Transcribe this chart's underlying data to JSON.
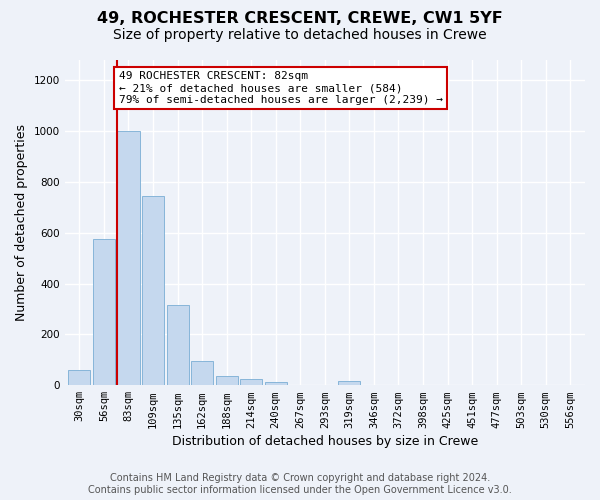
{
  "title_line1": "49, ROCHESTER CRESCENT, CREWE, CW1 5YF",
  "title_line2": "Size of property relative to detached houses in Crewe",
  "xlabel": "Distribution of detached houses by size in Crewe",
  "ylabel": "Number of detached properties",
  "bar_color": "#c5d8ee",
  "bar_edge_color": "#7aaed4",
  "categories": [
    "30sqm",
    "56sqm",
    "83sqm",
    "109sqm",
    "135sqm",
    "162sqm",
    "188sqm",
    "214sqm",
    "240sqm",
    "267sqm",
    "293sqm",
    "319sqm",
    "346sqm",
    "372sqm",
    "398sqm",
    "425sqm",
    "451sqm",
    "477sqm",
    "503sqm",
    "530sqm",
    "556sqm"
  ],
  "values": [
    60,
    575,
    1000,
    745,
    315,
    95,
    37,
    23,
    13,
    0,
    0,
    15,
    0,
    0,
    0,
    0,
    0,
    0,
    0,
    0,
    0
  ],
  "ylim": [
    0,
    1280
  ],
  "yticks": [
    0,
    200,
    400,
    600,
    800,
    1000,
    1200
  ],
  "vline_bin_index": 2,
  "annotation_line1": "49 ROCHESTER CRESCENT: 82sqm",
  "annotation_line2": "← 21% of detached houses are smaller (584)",
  "annotation_line3": "79% of semi-detached houses are larger (2,239) →",
  "vline_color": "#cc0000",
  "annotation_box_edgecolor": "#cc0000",
  "footer_line1": "Contains HM Land Registry data © Crown copyright and database right 2024.",
  "footer_line2": "Contains public sector information licensed under the Open Government Licence v3.0.",
  "background_color": "#eef2f9",
  "plot_bg_color": "#eef2f9",
  "grid_color": "#ffffff",
  "title_fontsize": 11.5,
  "subtitle_fontsize": 10,
  "axis_label_fontsize": 9,
  "tick_fontsize": 7.5,
  "annotation_fontsize": 8,
  "footer_fontsize": 7
}
